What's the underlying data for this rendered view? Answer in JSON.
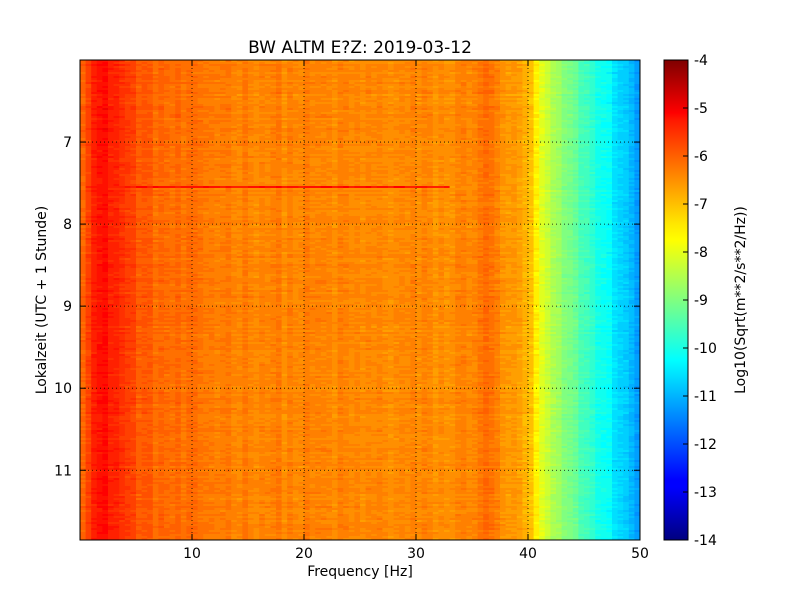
{
  "chart_data": {
    "type": "heatmap",
    "title": "BW ALTM E?Z: 2019-03-12",
    "xlabel": "Frequency [Hz]",
    "ylabel": "Lokalzeit (UTC + 1 Stunde)",
    "colorbar_label": "Log10(Sqrt(m**2/s**2/Hz))",
    "xlim": [
      0,
      50
    ],
    "ylim": [
      11.85,
      6.0
    ],
    "x_ticks": [
      "10",
      "20",
      "30",
      "40",
      "50"
    ],
    "y_ticks": [
      "7",
      "8",
      "9",
      "10",
      "11"
    ],
    "colorbar_range": [
      -14,
      -4
    ],
    "colorbar_ticks": [
      "-4",
      "-5",
      "-6",
      "-7",
      "-8",
      "-9",
      "-10",
      "-11",
      "-12",
      "-13",
      "-14"
    ],
    "colormap": "jet",
    "grid": true,
    "frequency_profile": {
      "x": [
        0,
        1,
        2,
        3,
        4,
        5,
        6,
        8,
        10,
        15,
        20,
        25,
        30,
        33,
        35,
        36,
        37,
        38,
        39,
        40,
        40.5,
        41,
        42,
        44,
        46,
        48,
        49,
        50
      ],
      "value": [
        -6.3,
        -5.6,
        -5.4,
        -5.5,
        -5.8,
        -6.0,
        -6.2,
        -6.3,
        -6.4,
        -6.5,
        -6.55,
        -6.6,
        -6.6,
        -6.65,
        -6.5,
        -6.35,
        -6.45,
        -6.7,
        -6.85,
        -7.0,
        -7.4,
        -7.9,
        -8.5,
        -9.2,
        -9.9,
        -10.5,
        -10.9,
        -11.3
      ]
    },
    "highlight_rows": [
      {
        "time": 7.55,
        "x_range": [
          0.5,
          33
        ],
        "value": -5.4
      }
    ]
  }
}
